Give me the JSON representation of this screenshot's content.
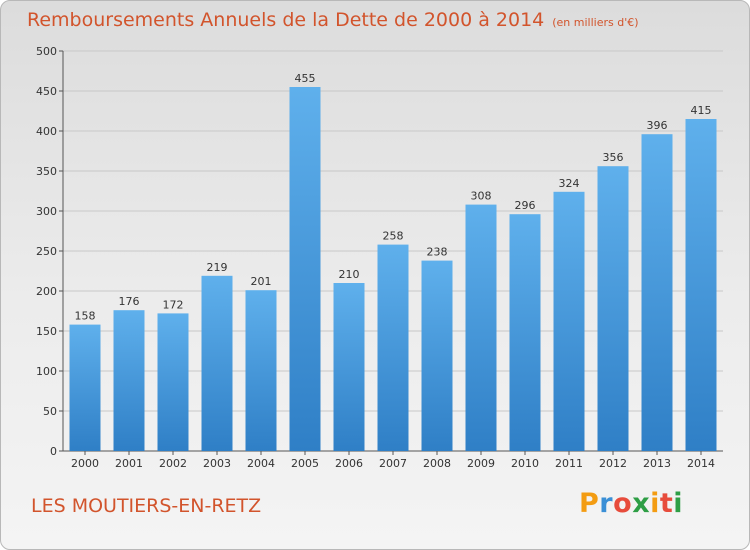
{
  "header": {
    "title": "Remboursements Annuels de la Dette de 2000 à 2014",
    "unit": "(en milliers d'€)"
  },
  "footer": {
    "commune": "LES MOUTIERS-EN-RETZ",
    "logo_text": "Proxiti",
    "logo_letters": [
      "P",
      "r",
      "o",
      "x",
      "i",
      "t",
      "i"
    ],
    "logo_colors": [
      "#f39c12",
      "#3a8fd6",
      "#e74c3c",
      "#2e9e45",
      "#f39c12",
      "#e74c3c",
      "#2e9e45"
    ]
  },
  "colors": {
    "bar_top": "#5fb0ec",
    "bar_bottom": "#2f7fc6",
    "title": "#d2542c",
    "grid": "#c8c8c8"
  },
  "chart_data": {
    "type": "bar",
    "title": "Remboursements Annuels de la Dette de 2000 à 2014",
    "subtitle": "(en milliers d'€)",
    "xlabel": "",
    "ylabel": "",
    "ylim": [
      0,
      500
    ],
    "yticks": [
      0,
      50,
      100,
      150,
      200,
      250,
      300,
      350,
      400,
      450,
      500
    ],
    "grid": true,
    "categories": [
      "2000",
      "2001",
      "2002",
      "2003",
      "2004",
      "2005",
      "2006",
      "2007",
      "2008",
      "2009",
      "2010",
      "2011",
      "2012",
      "2013",
      "2014"
    ],
    "values": [
      158,
      176,
      172,
      219,
      201,
      455,
      210,
      258,
      238,
      308,
      296,
      324,
      356,
      396,
      415
    ]
  }
}
